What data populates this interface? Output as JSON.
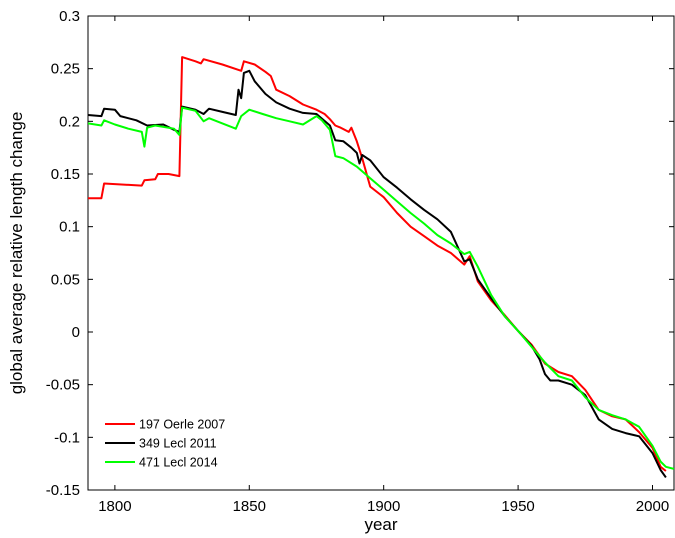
{
  "chart_data": {
    "type": "line",
    "title": "",
    "xlabel": "year",
    "ylabel": "global average relative length change",
    "xlim": [
      1790,
      2008
    ],
    "ylim": [
      -0.15,
      0.3
    ],
    "xticks": [
      1800,
      1850,
      1900,
      1950,
      2000
    ],
    "xtick_labels": [
      "1800",
      "1850",
      "1900",
      "1950",
      "2000"
    ],
    "yticks": [
      -0.15,
      -0.1,
      -0.05,
      0,
      0.05,
      0.1,
      0.15,
      0.2,
      0.25,
      0.3
    ],
    "ytick_labels": [
      "-0.15",
      "-0.1",
      "-0.05",
      "0",
      "0.05",
      "0.1",
      "0.15",
      "0.2",
      "0.25",
      "0.3"
    ],
    "grid": false,
    "legend_position": "bottom-left",
    "series": [
      {
        "name": "197 Oerle 2007",
        "color": "#ff0000",
        "points": [
          [
            1790,
            0.127
          ],
          [
            1795,
            0.127
          ],
          [
            1796,
            0.141
          ],
          [
            1810,
            0.139
          ],
          [
            1811,
            0.144
          ],
          [
            1815,
            0.145
          ],
          [
            1816,
            0.15
          ],
          [
            1820,
            0.15
          ],
          [
            1824,
            0.148
          ],
          [
            1825,
            0.261
          ],
          [
            1830,
            0.257
          ],
          [
            1832,
            0.255
          ],
          [
            1833,
            0.259
          ],
          [
            1840,
            0.254
          ],
          [
            1847,
            0.248
          ],
          [
            1848,
            0.257
          ],
          [
            1852,
            0.254
          ],
          [
            1856,
            0.247
          ],
          [
            1858,
            0.243
          ],
          [
            1860,
            0.23
          ],
          [
            1865,
            0.224
          ],
          [
            1870,
            0.216
          ],
          [
            1875,
            0.211
          ],
          [
            1878,
            0.207
          ],
          [
            1880,
            0.202
          ],
          [
            1882,
            0.196
          ],
          [
            1884,
            0.194
          ],
          [
            1887,
            0.19
          ],
          [
            1888,
            0.194
          ],
          [
            1890,
            0.181
          ],
          [
            1892,
            0.165
          ],
          [
            1895,
            0.138
          ],
          [
            1900,
            0.128
          ],
          [
            1905,
            0.113
          ],
          [
            1910,
            0.1
          ],
          [
            1915,
            0.091
          ],
          [
            1920,
            0.082
          ],
          [
            1925,
            0.075
          ],
          [
            1930,
            0.064
          ],
          [
            1932,
            0.072
          ],
          [
            1935,
            0.048
          ],
          [
            1940,
            0.03
          ],
          [
            1945,
            0.016
          ],
          [
            1950,
            0.001
          ],
          [
            1955,
            -0.012
          ],
          [
            1960,
            -0.03
          ],
          [
            1965,
            -0.038
          ],
          [
            1970,
            -0.042
          ],
          [
            1975,
            -0.055
          ],
          [
            1980,
            -0.074
          ],
          [
            1985,
            -0.08
          ],
          [
            1990,
            -0.083
          ],
          [
            1995,
            -0.095
          ],
          [
            2000,
            -0.11
          ],
          [
            2003,
            -0.128
          ],
          [
            2005,
            -0.132
          ]
        ]
      },
      {
        "name": "349 Lecl 2011",
        "color": "#000000",
        "points": [
          [
            1790,
            0.206
          ],
          [
            1795,
            0.205
          ],
          [
            1796,
            0.212
          ],
          [
            1800,
            0.211
          ],
          [
            1802,
            0.205
          ],
          [
            1808,
            0.201
          ],
          [
            1812,
            0.196
          ],
          [
            1818,
            0.197
          ],
          [
            1822,
            0.192
          ],
          [
            1824,
            0.19
          ],
          [
            1825,
            0.214
          ],
          [
            1830,
            0.211
          ],
          [
            1833,
            0.207
          ],
          [
            1835,
            0.212
          ],
          [
            1840,
            0.209
          ],
          [
            1845,
            0.206
          ],
          [
            1846,
            0.23
          ],
          [
            1847,
            0.222
          ],
          [
            1848,
            0.246
          ],
          [
            1850,
            0.248
          ],
          [
            1852,
            0.238
          ],
          [
            1856,
            0.226
          ],
          [
            1860,
            0.218
          ],
          [
            1865,
            0.212
          ],
          [
            1870,
            0.208
          ],
          [
            1875,
            0.207
          ],
          [
            1880,
            0.196
          ],
          [
            1882,
            0.182
          ],
          [
            1885,
            0.181
          ],
          [
            1888,
            0.175
          ],
          [
            1890,
            0.17
          ],
          [
            1891,
            0.16
          ],
          [
            1892,
            0.168
          ],
          [
            1895,
            0.163
          ],
          [
            1900,
            0.147
          ],
          [
            1905,
            0.137
          ],
          [
            1910,
            0.126
          ],
          [
            1915,
            0.116
          ],
          [
            1920,
            0.107
          ],
          [
            1925,
            0.095
          ],
          [
            1930,
            0.067
          ],
          [
            1932,
            0.069
          ],
          [
            1935,
            0.05
          ],
          [
            1940,
            0.032
          ],
          [
            1945,
            0.015
          ],
          [
            1950,
            0.001
          ],
          [
            1955,
            -0.013
          ],
          [
            1958,
            -0.026
          ],
          [
            1960,
            -0.04
          ],
          [
            1962,
            -0.046
          ],
          [
            1965,
            -0.046
          ],
          [
            1970,
            -0.05
          ],
          [
            1975,
            -0.06
          ],
          [
            1980,
            -0.083
          ],
          [
            1985,
            -0.092
          ],
          [
            1990,
            -0.096
          ],
          [
            1995,
            -0.099
          ],
          [
            2000,
            -0.115
          ],
          [
            2003,
            -0.131
          ],
          [
            2005,
            -0.138
          ]
        ]
      },
      {
        "name": "471 Lecl 2014",
        "color": "#00ff00",
        "points": [
          [
            1790,
            0.198
          ],
          [
            1795,
            0.196
          ],
          [
            1796,
            0.201
          ],
          [
            1800,
            0.197
          ],
          [
            1805,
            0.193
          ],
          [
            1810,
            0.19
          ],
          [
            1811,
            0.176
          ],
          [
            1812,
            0.194
          ],
          [
            1815,
            0.196
          ],
          [
            1822,
            0.193
          ],
          [
            1824,
            0.187
          ],
          [
            1825,
            0.213
          ],
          [
            1830,
            0.21
          ],
          [
            1833,
            0.2
          ],
          [
            1835,
            0.203
          ],
          [
            1840,
            0.198
          ],
          [
            1845,
            0.193
          ],
          [
            1847,
            0.205
          ],
          [
            1850,
            0.211
          ],
          [
            1855,
            0.207
          ],
          [
            1860,
            0.203
          ],
          [
            1865,
            0.2
          ],
          [
            1870,
            0.197
          ],
          [
            1875,
            0.205
          ],
          [
            1877,
            0.201
          ],
          [
            1880,
            0.192
          ],
          [
            1882,
            0.167
          ],
          [
            1885,
            0.165
          ],
          [
            1890,
            0.157
          ],
          [
            1895,
            0.146
          ],
          [
            1900,
            0.135
          ],
          [
            1905,
            0.124
          ],
          [
            1910,
            0.113
          ],
          [
            1915,
            0.103
          ],
          [
            1920,
            0.092
          ],
          [
            1925,
            0.084
          ],
          [
            1930,
            0.074
          ],
          [
            1932,
            0.076
          ],
          [
            1935,
            0.062
          ],
          [
            1940,
            0.035
          ],
          [
            1945,
            0.015
          ],
          [
            1950,
            0.001
          ],
          [
            1955,
            -0.014
          ],
          [
            1960,
            -0.029
          ],
          [
            1965,
            -0.042
          ],
          [
            1970,
            -0.046
          ],
          [
            1975,
            -0.062
          ],
          [
            1980,
            -0.074
          ],
          [
            1985,
            -0.079
          ],
          [
            1990,
            -0.083
          ],
          [
            1995,
            -0.09
          ],
          [
            2000,
            -0.108
          ],
          [
            2003,
            -0.123
          ],
          [
            2005,
            -0.128
          ],
          [
            2008,
            -0.13
          ]
        ]
      }
    ]
  }
}
